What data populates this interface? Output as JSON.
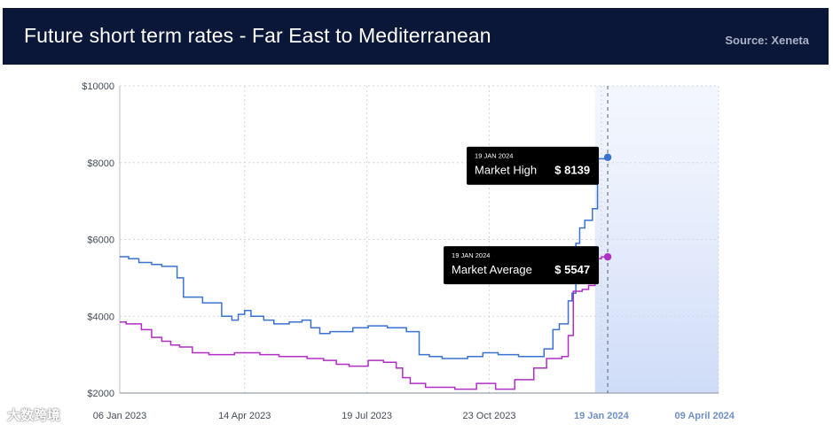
{
  "header": {
    "title": "Future short term rates - Far East to Mediterranean",
    "source": "Source: Xeneta"
  },
  "watermark": "大数跨境",
  "chart_data": {
    "type": "line",
    "title": "Future short term rates - Far East to Mediterranean",
    "xlabel": "",
    "ylabel": "",
    "y_ticks": [
      "$2000",
      "$4000",
      "$6000",
      "$8000",
      "$10000"
    ],
    "ylim": [
      2000,
      10000
    ],
    "x_ticks": [
      "06 Jan 2023",
      "14 Apr 2023",
      "19 Jul 2023",
      "23 Oct 2023",
      "19 Jan 2024",
      "09 April 2024"
    ],
    "x_tick_days": [
      5,
      103,
      199,
      295,
      383,
      464
    ],
    "highlight_x_ticks": [
      "19 Jan 2024",
      "09 April 2024"
    ],
    "xlim_days": [
      5,
      475
    ],
    "forecast_start_day": 378,
    "current_day": 388,
    "grid": true,
    "colors": {
      "high": "#3a72cf",
      "average": "#b12ec4",
      "forecast": "#dfe7fb"
    },
    "series": [
      {
        "name": "Market High",
        "color": "#3a72cf",
        "points": [
          [
            5,
            5550
          ],
          [
            12,
            5500
          ],
          [
            20,
            5400
          ],
          [
            30,
            5350
          ],
          [
            38,
            5300
          ],
          [
            50,
            5000
          ],
          [
            55,
            4500
          ],
          [
            70,
            4350
          ],
          [
            85,
            4000
          ],
          [
            93,
            3900
          ],
          [
            98,
            4050
          ],
          [
            103,
            4150
          ],
          [
            108,
            4000
          ],
          [
            118,
            3900
          ],
          [
            126,
            3800
          ],
          [
            138,
            3850
          ],
          [
            148,
            3900
          ],
          [
            155,
            3700
          ],
          [
            162,
            3550
          ],
          [
            170,
            3600
          ],
          [
            188,
            3700
          ],
          [
            200,
            3750
          ],
          [
            215,
            3700
          ],
          [
            230,
            3600
          ],
          [
            240,
            3000
          ],
          [
            248,
            2950
          ],
          [
            258,
            2900
          ],
          [
            278,
            2950
          ],
          [
            290,
            3050
          ],
          [
            302,
            3000
          ],
          [
            318,
            2950
          ],
          [
            338,
            3150
          ],
          [
            345,
            3650
          ],
          [
            350,
            3800
          ],
          [
            357,
            4400
          ],
          [
            360,
            4600
          ],
          [
            363,
            5900
          ],
          [
            366,
            6300
          ],
          [
            370,
            6500
          ],
          [
            376,
            6800
          ],
          [
            380,
            8100
          ],
          [
            388,
            8139
          ]
        ]
      },
      {
        "name": "Market Average",
        "color": "#b12ec4",
        "points": [
          [
            5,
            3850
          ],
          [
            10,
            3800
          ],
          [
            22,
            3650
          ],
          [
            30,
            3450
          ],
          [
            38,
            3350
          ],
          [
            45,
            3250
          ],
          [
            52,
            3200
          ],
          [
            62,
            3050
          ],
          [
            75,
            3000
          ],
          [
            95,
            3050
          ],
          [
            115,
            3000
          ],
          [
            130,
            2950
          ],
          [
            152,
            2900
          ],
          [
            165,
            2850
          ],
          [
            175,
            2750
          ],
          [
            185,
            2700
          ],
          [
            200,
            2850
          ],
          [
            212,
            2800
          ],
          [
            222,
            2650
          ],
          [
            227,
            2400
          ],
          [
            233,
            2250
          ],
          [
            245,
            2150
          ],
          [
            268,
            2100
          ],
          [
            285,
            2250
          ],
          [
            300,
            2100
          ],
          [
            315,
            2350
          ],
          [
            330,
            2650
          ],
          [
            340,
            2900
          ],
          [
            352,
            2950
          ],
          [
            357,
            3500
          ],
          [
            361,
            4650
          ],
          [
            368,
            4700
          ],
          [
            373,
            4800
          ],
          [
            378,
            5500
          ],
          [
            383,
            5547
          ],
          [
            388,
            5547
          ]
        ]
      }
    ],
    "tooltips": [
      {
        "series": "Market High",
        "date": "19 JAN 2024",
        "label": "Market High",
        "value": "$ 8139",
        "y": 8139
      },
      {
        "series": "Market Average",
        "date": "19 JAN 2024",
        "label": "Market Average",
        "value": "$ 5547",
        "y": 5547
      }
    ]
  }
}
